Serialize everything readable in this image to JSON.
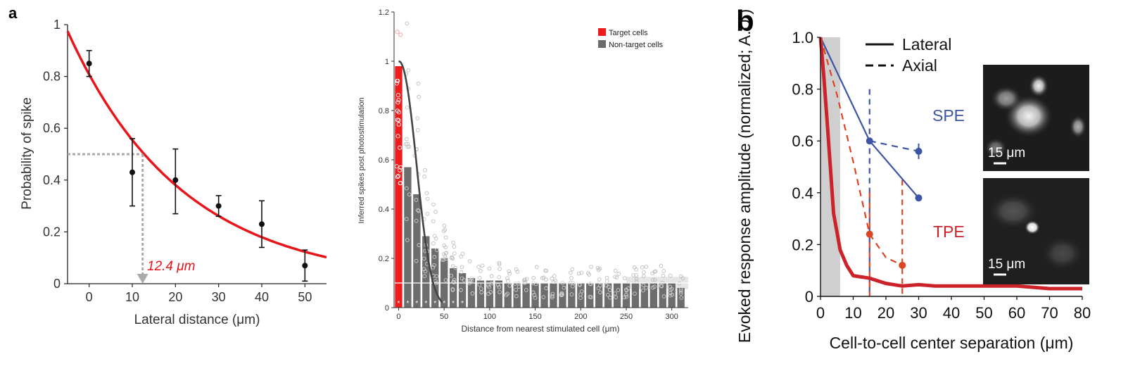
{
  "panel_labels": {
    "a": "a",
    "b": "b"
  },
  "chart_data": [
    {
      "type": "scatter",
      "xlabel": "Lateral distance (μm)",
      "ylabel": "Probability of spike",
      "xlim": [
        -5,
        55
      ],
      "ylim": [
        0,
        1
      ],
      "xticks": [
        "0",
        "10",
        "20",
        "30",
        "40",
        "50"
      ],
      "yticks": [
        "0",
        "0.2",
        "0.4",
        "0.6",
        "0.8",
        "1"
      ],
      "points": [
        {
          "x": 0,
          "y": 0.85,
          "lo": 0.8,
          "hi": 0.9
        },
        {
          "x": 10,
          "y": 0.43,
          "lo": 0.3,
          "hi": 0.56
        },
        {
          "x": 20,
          "y": 0.4,
          "lo": 0.27,
          "hi": 0.52
        },
        {
          "x": 30,
          "y": 0.3,
          "lo": 0.26,
          "hi": 0.34
        },
        {
          "x": 40,
          "y": 0.23,
          "lo": 0.14,
          "hi": 0.32
        },
        {
          "x": 50,
          "y": 0.07,
          "lo": 0.01,
          "hi": 0.13
        }
      ],
      "fit_curve": {
        "color": "#e8151b",
        "a": 0.975,
        "tau": 26.6
      },
      "annotation": {
        "text": "12.4 μm",
        "x": 12.4,
        "y": 0.5,
        "color": "#e8151b"
      }
    },
    {
      "type": "bar",
      "xlabel": "Distance from nearest stimulated cell (μm)",
      "ylabel": "Inferred spikes post photostimulation",
      "xlim": [
        -5,
        318
      ],
      "ylim": [
        0,
        1.2
      ],
      "xticks": [
        "0",
        "50",
        "100",
        "150",
        "200",
        "250",
        "300"
      ],
      "yticks": [
        "0",
        "0.2",
        "0.4",
        "0.6",
        "0.8",
        "1",
        "1.2"
      ],
      "legend": [
        {
          "label": "Target cells",
          "color": "#ee1c1c"
        },
        {
          "label": "Non-target cells",
          "color": "#6d6d6d"
        }
      ],
      "legend_position": "top-right",
      "series": [
        {
          "name": "Target cells",
          "bin_width": 8,
          "x": [
            0
          ],
          "values": [
            0.98
          ]
        },
        {
          "name": "Non-target cells",
          "bin_width": 8,
          "x": [
            10,
            20,
            30,
            40,
            50,
            60,
            70,
            80,
            90,
            100,
            110,
            120,
            130,
            140,
            150,
            160,
            170,
            180,
            190,
            200,
            210,
            220,
            230,
            240,
            250,
            260,
            270,
            280,
            290,
            300,
            310
          ],
          "values": [
            0.57,
            0.46,
            0.29,
            0.24,
            0.2,
            0.16,
            0.14,
            0.12,
            0.11,
            0.11,
            0.11,
            0.1,
            0.1,
            0.1,
            0.1,
            0.1,
            0.1,
            0.1,
            0.1,
            0.1,
            0.1,
            0.1,
            0.1,
            0.1,
            0.1,
            0.1,
            0.1,
            0.1,
            0.1,
            0.1,
            0.08
          ]
        }
      ],
      "significance_marks": [
        "*",
        "*",
        "*",
        "*",
        "*",
        "*",
        "*",
        "*"
      ],
      "baseline": 0.1,
      "fit_line_color": "#444444"
    },
    {
      "type": "line",
      "xlabel": "Cell-to-cell center separation (μm)",
      "ylabel": "Evoked response amplitude (normalized; A.U.)",
      "xlim": [
        0,
        80
      ],
      "ylim": [
        0,
        1.0
      ],
      "xticks": [
        "0",
        "10",
        "20",
        "30",
        "40",
        "50",
        "60",
        "70",
        "80"
      ],
      "yticks": [
        "0",
        "0.2",
        "0.4",
        "0.6",
        "0.8",
        "1.0"
      ],
      "legend": [
        {
          "label": "Lateral",
          "style": "solid"
        },
        {
          "label": "Axial",
          "style": "dashed"
        }
      ],
      "series": [
        {
          "name": "SPE",
          "style": "solid",
          "color": "#3d54a5",
          "x": [
            0,
            15,
            30
          ],
          "y": [
            1.0,
            0.6,
            0.38
          ]
        },
        {
          "name": "SPE",
          "style": "dashed",
          "color": "#3d54a5",
          "x": [
            15,
            30
          ],
          "y": [
            0.6,
            0.56
          ]
        },
        {
          "name": "TPE",
          "style": "solid",
          "color": "#cc2229",
          "x": [
            0,
            1,
            2,
            3,
            4,
            5,
            6,
            8,
            10,
            15,
            20,
            25,
            30,
            35,
            40,
            50,
            60,
            70,
            80
          ],
          "y": [
            1.0,
            0.85,
            0.68,
            0.5,
            0.32,
            0.25,
            0.18,
            0.12,
            0.08,
            0.07,
            0.05,
            0.04,
            0.045,
            0.04,
            0.04,
            0.04,
            0.04,
            0.03,
            0.03
          ]
        },
        {
          "name": "TPE",
          "style": "dashed",
          "color": "#dd4422",
          "x": [
            0,
            5,
            10,
            15,
            20,
            25
          ],
          "y": [
            1.0,
            0.78,
            0.52,
            0.24,
            0.15,
            0.12
          ]
        }
      ],
      "shaded_region": [
        0,
        6
      ],
      "series_labels": [
        {
          "text": "SPE",
          "color": "#3d54a5"
        },
        {
          "text": "TPE",
          "color": "#cc2229"
        }
      ],
      "insets": [
        {
          "scale_label": "15 μm"
        },
        {
          "scale_label": "15 μm"
        }
      ]
    }
  ]
}
